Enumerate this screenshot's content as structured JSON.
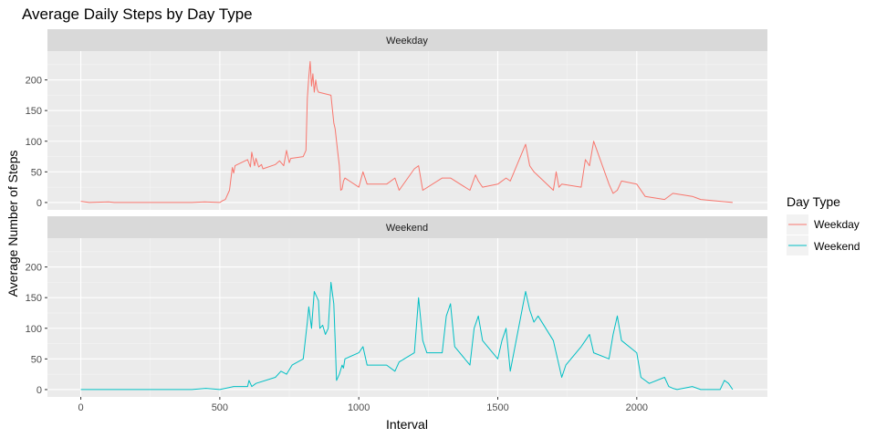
{
  "chart_data": {
    "type": "line",
    "title": "Average Daily Steps by Day Type",
    "xlabel": "Interval",
    "ylabel": "Average Number of Steps",
    "xlim": [
      -120,
      2470
    ],
    "ylim": [
      -12,
      247
    ],
    "x_ticks": [
      0,
      500,
      1000,
      1500,
      2000
    ],
    "y_ticks": [
      0,
      50,
      100,
      150,
      200
    ],
    "grid": true,
    "legend": {
      "title": "Day Type",
      "position": "right"
    },
    "facets": [
      "Weekday",
      "Weekend"
    ],
    "series": [
      {
        "name": "Weekday",
        "color": "#F8766D",
        "facet": "Weekday",
        "x": [
          0,
          30,
          100,
          120,
          200,
          300,
          400,
          445,
          500,
          510,
          520,
          535,
          545,
          550,
          555,
          600,
          610,
          615,
          625,
          630,
          640,
          650,
          655,
          700,
          715,
          730,
          740,
          750,
          755,
          800,
          810,
          815,
          820,
          825,
          830,
          835,
          840,
          845,
          850,
          855,
          900,
          910,
          915,
          920,
          925,
          930,
          935,
          940,
          945,
          950,
          1000,
          1015,
          1030,
          1100,
          1130,
          1145,
          1200,
          1215,
          1230,
          1300,
          1330,
          1400,
          1420,
          1430,
          1445,
          1500,
          1530,
          1545,
          1600,
          1615,
          1630,
          1700,
          1710,
          1720,
          1730,
          1800,
          1815,
          1830,
          1845,
          1900,
          1915,
          1930,
          1945,
          2000,
          2030,
          2100,
          2130,
          2200,
          2230,
          2300,
          2345
        ],
        "y": [
          2,
          0,
          1,
          0,
          0,
          0,
          0,
          1,
          0,
          3,
          5,
          20,
          57,
          48,
          60,
          70,
          58,
          82,
          60,
          72,
          58,
          62,
          55,
          62,
          68,
          60,
          85,
          65,
          72,
          75,
          85,
          170,
          205,
          230,
          190,
          210,
          180,
          200,
          185,
          180,
          175,
          130,
          120,
          100,
          80,
          60,
          20,
          22,
          35,
          40,
          25,
          50,
          30,
          30,
          40,
          20,
          55,
          60,
          20,
          40,
          40,
          20,
          45,
          35,
          25,
          30,
          40,
          35,
          95,
          60,
          50,
          20,
          50,
          25,
          30,
          25,
          70,
          60,
          100,
          30,
          15,
          20,
          35,
          30,
          10,
          5,
          15,
          10,
          5,
          2,
          0
        ]
      },
      {
        "name": "Weekend",
        "color": "#00BFC4",
        "facet": "Weekend",
        "x": [
          0,
          50,
          100,
          200,
          300,
          400,
          450,
          500,
          550,
          600,
          605,
          615,
          630,
          700,
          720,
          740,
          760,
          800,
          815,
          820,
          830,
          840,
          850,
          855,
          860,
          870,
          880,
          890,
          900,
          910,
          915,
          920,
          930,
          940,
          945,
          950,
          1000,
          1015,
          1030,
          1100,
          1130,
          1145,
          1200,
          1210,
          1215,
          1230,
          1245,
          1300,
          1315,
          1330,
          1345,
          1400,
          1415,
          1430,
          1445,
          1500,
          1515,
          1530,
          1545,
          1600,
          1610,
          1615,
          1630,
          1645,
          1700,
          1715,
          1730,
          1745,
          1800,
          1815,
          1830,
          1845,
          1900,
          1915,
          1930,
          1945,
          2000,
          2015,
          2030,
          2045,
          2100,
          2115,
          2130,
          2145,
          2200,
          2230,
          2300,
          2315,
          2330,
          2345
        ],
        "y": [
          0,
          0,
          0,
          0,
          0,
          0,
          2,
          0,
          5,
          5,
          15,
          5,
          10,
          20,
          30,
          25,
          40,
          50,
          110,
          135,
          100,
          160,
          150,
          145,
          100,
          105,
          90,
          100,
          175,
          140,
          80,
          15,
          25,
          40,
          35,
          50,
          60,
          70,
          40,
          40,
          30,
          45,
          60,
          120,
          150,
          80,
          60,
          60,
          120,
          140,
          70,
          40,
          100,
          120,
          80,
          50,
          80,
          100,
          30,
          160,
          140,
          130,
          110,
          120,
          80,
          50,
          20,
          40,
          70,
          80,
          90,
          60,
          50,
          90,
          120,
          80,
          60,
          20,
          15,
          10,
          20,
          5,
          2,
          0,
          5,
          0,
          0,
          15,
          10,
          0
        ]
      }
    ]
  }
}
